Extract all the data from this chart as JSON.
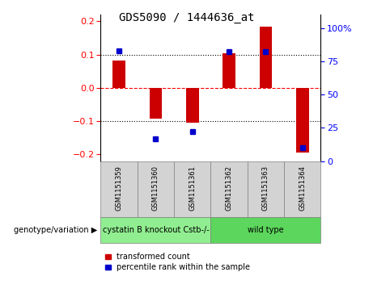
{
  "title": "GDS5090 / 1444636_at",
  "samples": [
    "GSM1151359",
    "GSM1151360",
    "GSM1151361",
    "GSM1151362",
    "GSM1151363",
    "GSM1151364"
  ],
  "transformed_count": [
    0.083,
    -0.093,
    -0.105,
    0.103,
    0.185,
    -0.195
  ],
  "percentile_rank": [
    83,
    17,
    22,
    82,
    82,
    10
  ],
  "groups": [
    {
      "label": "cystatin B knockout Cstb-/-",
      "indices": [
        0,
        1,
        2
      ],
      "color": "#90ee90"
    },
    {
      "label": "wild type",
      "indices": [
        3,
        4,
        5
      ],
      "color": "#5cd65c"
    }
  ],
  "bar_color": "#cc0000",
  "dot_color": "#0000cc",
  "ylim_left": [
    -0.22,
    0.22
  ],
  "ylim_right": [
    0,
    110
  ],
  "yticks_left": [
    -0.2,
    -0.1,
    0,
    0.1,
    0.2
  ],
  "yticks_right": [
    0,
    25,
    50,
    75,
    100
  ],
  "ytick_labels_right": [
    "0",
    "25",
    "50",
    "75",
    "100%"
  ],
  "hlines": [
    -0.1,
    0.0,
    0.1
  ],
  "hline_styles": [
    "dotted",
    "dashed",
    "dotted"
  ],
  "hline_colors": [
    "black",
    "red",
    "black"
  ],
  "background_color": "#d3d3d3",
  "plot_bg_color": "#ffffff",
  "bar_width": 0.35,
  "legend_labels": [
    "transformed count",
    "percentile rank within the sample"
  ],
  "genotype_label": "genotype/variation",
  "title_fontsize": 10,
  "axis_fontsize": 8,
  "label_fontsize": 7,
  "sample_fontsize": 6,
  "group_fontsize": 7
}
